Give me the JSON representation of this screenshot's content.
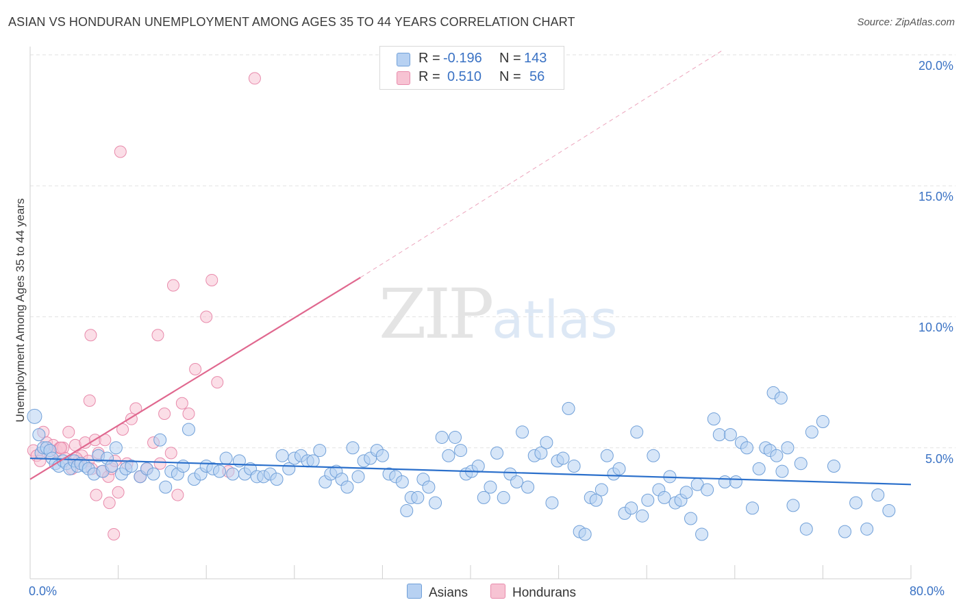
{
  "title": "ASIAN VS HONDURAN UNEMPLOYMENT AMONG AGES 35 TO 44 YEARS CORRELATION CHART",
  "source": "Source: ZipAtlas.com",
  "watermark": {
    "zip": "ZIP",
    "atlas": "atlas"
  },
  "legend": {
    "asian": {
      "r_label": "R =",
      "r_value": "-0.196",
      "n_label": "N =",
      "n_value": "143"
    },
    "honduran": {
      "r_label": "R =",
      "r_value": "0.510",
      "n_label": "N =",
      "n_value": "56"
    }
  },
  "bottom_legend": {
    "asian": "Asians",
    "honduran": "Hondurans"
  },
  "colors": {
    "asian_fill": "#b7d1f2",
    "asian_stroke": "#6f9fd8",
    "asian_line": "#2a6fcb",
    "honduran_fill": "#f7c3d3",
    "honduran_stroke": "#e88aab",
    "honduran_line": "#e0688f",
    "tick_text": "#3a72c4",
    "grid": "#e2e2e2"
  },
  "chart_data": {
    "type": "scatter",
    "title": "ASIAN VS HONDURAN UNEMPLOYMENT AMONG AGES 35 TO 44 YEARS CORRELATION CHART",
    "xlabel": "",
    "ylabel": "Unemployment Among Ages 35 to 44 years",
    "xlim": [
      0,
      80
    ],
    "ylim": [
      0,
      20
    ],
    "x_tick_labels": [
      "0.0%",
      "80.0%"
    ],
    "y_ticks": [
      5,
      10,
      15,
      20
    ],
    "y_tick_labels": [
      "5.0%",
      "10.0%",
      "15.0%",
      "20.0%"
    ],
    "grid": true,
    "legend_position": "top-center",
    "series": [
      {
        "name": "Asians",
        "r": -0.196,
        "n": 143,
        "trend": {
          "x": [
            0,
            80
          ],
          "y": [
            4.6,
            3.6
          ]
        },
        "points": [
          [
            0.4,
            6.2
          ],
          [
            0.8,
            5.5
          ],
          [
            1.0,
            4.8
          ],
          [
            1.2,
            5.0
          ],
          [
            1.5,
            5.0
          ],
          [
            1.8,
            4.9
          ],
          [
            2.0,
            4.6
          ],
          [
            2.3,
            4.4
          ],
          [
            2.6,
            4.3
          ],
          [
            3.0,
            4.5
          ],
          [
            3.3,
            4.4
          ],
          [
            3.6,
            4.2
          ],
          [
            4.0,
            4.5
          ],
          [
            4.3,
            4.3
          ],
          [
            4.6,
            4.4
          ],
          [
            5.0,
            4.3
          ],
          [
            5.3,
            4.2
          ],
          [
            5.8,
            4.0
          ],
          [
            6.2,
            4.7
          ],
          [
            6.6,
            4.1
          ],
          [
            7.0,
            4.6
          ],
          [
            7.4,
            4.3
          ],
          [
            7.8,
            5.0
          ],
          [
            8.3,
            4.0
          ],
          [
            8.7,
            4.2
          ],
          [
            9.2,
            4.3
          ],
          [
            10.0,
            3.9
          ],
          [
            10.6,
            4.2
          ],
          [
            11.2,
            4.0
          ],
          [
            11.8,
            5.3
          ],
          [
            12.3,
            3.5
          ],
          [
            12.8,
            4.1
          ],
          [
            13.4,
            4.0
          ],
          [
            13.9,
            4.3
          ],
          [
            14.4,
            5.7
          ],
          [
            14.9,
            3.8
          ],
          [
            15.5,
            4.0
          ],
          [
            16.0,
            4.3
          ],
          [
            16.6,
            4.2
          ],
          [
            17.2,
            4.1
          ],
          [
            17.8,
            4.6
          ],
          [
            18.4,
            4.0
          ],
          [
            19.0,
            4.5
          ],
          [
            19.5,
            4.0
          ],
          [
            20.0,
            4.2
          ],
          [
            20.6,
            3.9
          ],
          [
            21.2,
            3.9
          ],
          [
            21.8,
            4.0
          ],
          [
            22.4,
            3.8
          ],
          [
            22.9,
            4.7
          ],
          [
            23.5,
            4.2
          ],
          [
            24.0,
            4.6
          ],
          [
            24.6,
            4.7
          ],
          [
            25.2,
            4.5
          ],
          [
            25.7,
            4.5
          ],
          [
            26.3,
            4.9
          ],
          [
            26.8,
            3.7
          ],
          [
            27.3,
            4.0
          ],
          [
            27.8,
            4.1
          ],
          [
            28.3,
            3.8
          ],
          [
            28.8,
            3.5
          ],
          [
            29.3,
            5.0
          ],
          [
            29.8,
            3.9
          ],
          [
            30.3,
            4.5
          ],
          [
            30.9,
            4.6
          ],
          [
            31.5,
            4.9
          ],
          [
            32.0,
            4.7
          ],
          [
            32.6,
            4.0
          ],
          [
            33.2,
            3.9
          ],
          [
            33.8,
            3.7
          ],
          [
            34.2,
            2.6
          ],
          [
            34.6,
            3.1
          ],
          [
            35.2,
            3.1
          ],
          [
            35.7,
            3.8
          ],
          [
            36.2,
            3.5
          ],
          [
            36.8,
            2.9
          ],
          [
            37.4,
            5.4
          ],
          [
            38.0,
            4.7
          ],
          [
            38.6,
            5.4
          ],
          [
            39.1,
            4.9
          ],
          [
            39.6,
            4.0
          ],
          [
            40.1,
            4.1
          ],
          [
            40.7,
            4.3
          ],
          [
            41.2,
            3.1
          ],
          [
            41.8,
            3.5
          ],
          [
            42.4,
            4.8
          ],
          [
            43.0,
            3.1
          ],
          [
            43.6,
            4.0
          ],
          [
            44.2,
            3.7
          ],
          [
            44.7,
            5.6
          ],
          [
            45.2,
            3.5
          ],
          [
            45.8,
            4.7
          ],
          [
            46.4,
            4.8
          ],
          [
            46.9,
            5.2
          ],
          [
            47.4,
            2.9
          ],
          [
            47.9,
            4.5
          ],
          [
            48.4,
            4.6
          ],
          [
            48.9,
            6.5
          ],
          [
            49.4,
            4.3
          ],
          [
            49.9,
            1.8
          ],
          [
            50.4,
            1.7
          ],
          [
            50.9,
            3.1
          ],
          [
            51.4,
            3.0
          ],
          [
            51.9,
            3.4
          ],
          [
            52.4,
            4.7
          ],
          [
            53.0,
            4.0
          ],
          [
            53.5,
            4.2
          ],
          [
            54.0,
            2.5
          ],
          [
            54.6,
            2.7
          ],
          [
            55.1,
            5.6
          ],
          [
            55.6,
            2.4
          ],
          [
            56.1,
            3.0
          ],
          [
            56.6,
            4.7
          ],
          [
            57.1,
            3.4
          ],
          [
            57.6,
            3.1
          ],
          [
            58.1,
            3.9
          ],
          [
            58.6,
            2.9
          ],
          [
            59.1,
            3.0
          ],
          [
            59.6,
            3.3
          ],
          [
            60.0,
            2.3
          ],
          [
            60.6,
            3.6
          ],
          [
            61.0,
            1.7
          ],
          [
            61.5,
            3.4
          ],
          [
            62.1,
            6.1
          ],
          [
            62.6,
            5.5
          ],
          [
            63.1,
            3.7
          ],
          [
            63.6,
            5.5
          ],
          [
            64.1,
            3.7
          ],
          [
            64.6,
            5.2
          ],
          [
            65.1,
            5.0
          ],
          [
            65.6,
            2.7
          ],
          [
            66.2,
            4.2
          ],
          [
            66.8,
            5.0
          ],
          [
            67.2,
            4.9
          ],
          [
            67.8,
            4.7
          ],
          [
            68.3,
            4.1
          ],
          [
            68.8,
            5.0
          ],
          [
            69.3,
            2.8
          ],
          [
            70.0,
            4.4
          ],
          [
            70.5,
            1.9
          ],
          [
            71.0,
            5.6
          ],
          [
            72.0,
            6.0
          ],
          [
            73.0,
            4.3
          ],
          [
            74.0,
            1.8
          ],
          [
            75.0,
            2.9
          ],
          [
            76.0,
            1.9
          ],
          [
            77.0,
            3.2
          ],
          [
            78.0,
            2.6
          ],
          [
            67.5,
            7.1
          ],
          [
            68.2,
            6.9
          ]
        ]
      },
      {
        "name": "Hondurans",
        "r": 0.51,
        "n": 56,
        "trend": {
          "x": [
            0,
            30
          ],
          "y": [
            3.8,
            11.5
          ],
          "dashed_to": {
            "x": 63,
            "y": 20.2
          }
        },
        "points": [
          [
            0.3,
            4.9
          ],
          [
            0.6,
            4.7
          ],
          [
            0.9,
            4.5
          ],
          [
            1.2,
            5.6
          ],
          [
            1.5,
            5.2
          ],
          [
            1.8,
            4.8
          ],
          [
            2.1,
            5.1
          ],
          [
            2.4,
            4.9
          ],
          [
            2.7,
            5.0
          ],
          [
            3.0,
            5.0
          ],
          [
            3.2,
            4.6
          ],
          [
            3.5,
            5.6
          ],
          [
            3.8,
            4.2
          ],
          [
            4.1,
            5.1
          ],
          [
            4.4,
            4.5
          ],
          [
            4.7,
            4.7
          ],
          [
            5.0,
            5.2
          ],
          [
            5.3,
            4.5
          ],
          [
            5.6,
            4.2
          ],
          [
            5.9,
            5.3
          ],
          [
            6.2,
            4.8
          ],
          [
            6.5,
            4.1
          ],
          [
            6.8,
            5.3
          ],
          [
            7.1,
            3.9
          ],
          [
            7.4,
            4.2
          ],
          [
            7.7,
            4.5
          ],
          [
            8.0,
            3.3
          ],
          [
            8.4,
            5.7
          ],
          [
            8.8,
            4.4
          ],
          [
            9.2,
            6.1
          ],
          [
            9.6,
            6.5
          ],
          [
            10.0,
            3.9
          ],
          [
            10.6,
            4.2
          ],
          [
            11.2,
            5.2
          ],
          [
            11.8,
            4.4
          ],
          [
            12.2,
            6.3
          ],
          [
            12.8,
            4.8
          ],
          [
            13.4,
            3.2
          ],
          [
            13.8,
            6.7
          ],
          [
            14.4,
            6.3
          ],
          [
            15.0,
            8.0
          ],
          [
            16.0,
            10.0
          ],
          [
            16.5,
            11.4
          ],
          [
            17.0,
            7.5
          ],
          [
            18.0,
            4.1
          ],
          [
            20.4,
            19.1
          ],
          [
            8.2,
            16.3
          ],
          [
            13.0,
            11.2
          ],
          [
            11.6,
            9.3
          ],
          [
            5.5,
            9.3
          ],
          [
            5.4,
            6.8
          ],
          [
            7.2,
            2.9
          ],
          [
            7.6,
            1.7
          ],
          [
            6.0,
            3.2
          ],
          [
            4.2,
            4.6
          ],
          [
            2.8,
            5.0
          ]
        ]
      }
    ]
  }
}
